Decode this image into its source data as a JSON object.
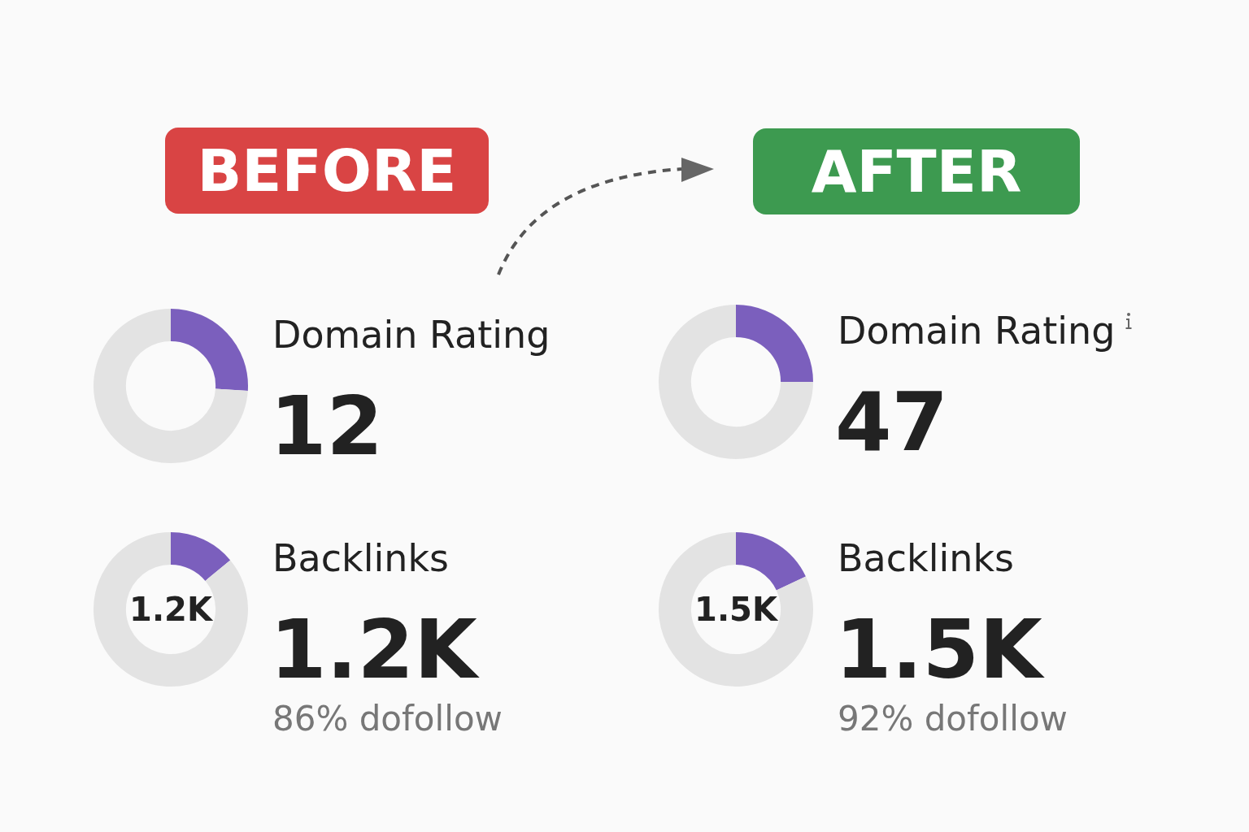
{
  "chart_data": [
    {
      "type": "other",
      "annotations": [
        "BEFORE",
        "AFTER"
      ]
    },
    {
      "type": "donut",
      "title": "Domain Rating",
      "subtitle": "12",
      "categories": [
        null,
        null
      ],
      "values": [
        26,
        74
      ],
      "colors": [
        "#7b5fbd",
        "#e3e3e3"
      ]
    },
    {
      "type": "donut",
      "title": "Domain Rating",
      "subtitle": "47",
      "categories": [
        null,
        null
      ],
      "values": [
        25,
        75
      ],
      "colors": [
        "#7b5fbd",
        "#e3e3e3"
      ]
    },
    {
      "type": "donut",
      "title": "Backlinks",
      "subtitle": "1.2K",
      "categories": [
        null,
        null
      ],
      "values": [
        14,
        86
      ],
      "colors": [
        "#7b5fbd",
        "#e3e3e3"
      ],
      "annotations": [
        "1.2K",
        "86% dofollow"
      ]
    },
    {
      "type": "donut",
      "title": "Backlinks",
      "subtitle": "1.5K",
      "categories": [
        null,
        null
      ],
      "values": [
        18,
        82
      ],
      "colors": [
        "#7b5fbd",
        "#e3e3e3"
      ],
      "annotations": [
        "1.5K",
        "92% dofollow"
      ]
    }
  ]
}
